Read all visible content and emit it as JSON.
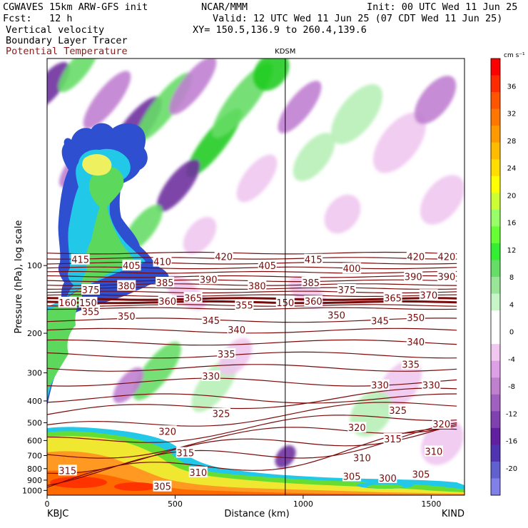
{
  "header": {
    "model": "CGWAVES 15km ARW-GFS init",
    "center": "NCAR/MMM",
    "init": "Init: 00 UTC Wed 11 Jun 25",
    "fcst": "Fcst:   12 h",
    "valid": "Valid: 12 UTC Wed 11 Jun 25 (07 CDT Wed 11 Jun 25)",
    "field1": "Vertical velocity",
    "field2": "Boundary Layer Tracer",
    "field3": "Potential Temperature",
    "xy": "XY= 150.5,136.9 to 260.4,139.6"
  },
  "colors": {
    "theta_line": "#7a0a0a",
    "theta_label": "#7a0a0a",
    "pos_light": "#b8f0b8",
    "pos_mid": "#66dd66",
    "pos_strong": "#22cc22",
    "neg_light": "#f0c8f0",
    "neg_mid": "#c080d0",
    "neg_strong": "#7030a0"
  },
  "chart_data": {
    "type": "heatmap",
    "title": "",
    "xlabel": "Distance (km)",
    "ylabel": "Pressure (hPa), log scale",
    "xlim": [
      0,
      1630
    ],
    "ylim": [
      1050,
      12
    ],
    "y_scale": "log",
    "x_ticks": [
      "0",
      "500",
      "1000",
      "1500"
    ],
    "x_tick_values": [
      0,
      500,
      1000,
      1500
    ],
    "y_ticks": [
      "100",
      "200",
      "300",
      "400",
      "500",
      "600",
      "700",
      "800",
      "900",
      "1000"
    ],
    "y_tick_values": [
      100,
      200,
      300,
      400,
      500,
      600,
      700,
      800,
      900,
      1000
    ],
    "left_station": "KBJC",
    "right_station": "KIND",
    "marker_station": "KDSM",
    "marker_x": 930,
    "colorbar": {
      "unit": "cm s⁻¹",
      "labels": [
        "36",
        "32",
        "28",
        "24",
        "20",
        "16",
        "12",
        "8",
        "4",
        "0",
        "-4",
        "-8",
        "-12",
        "-16",
        "-20"
      ],
      "values": [
        36,
        32,
        28,
        24,
        20,
        16,
        12,
        8,
        4,
        0,
        -4,
        -8,
        -12,
        -16,
        -20
      ],
      "colors": [
        "#ff0000",
        "#ff2a00",
        "#ff5500",
        "#ff7700",
        "#ff9900",
        "#ffbb00",
        "#ffdd00",
        "#ffff00",
        "#ccff33",
        "#99ff66",
        "#66ff33",
        "#33ee33",
        "#66dd66",
        "#99e699",
        "#c8f5c8",
        "#ffffff",
        "#ffffff",
        "#f0c8f0",
        "#dda0e6",
        "#c080d0",
        "#a060c0",
        "#7f40b0",
        "#6020a0",
        "#5033b0",
        "#6060d0",
        "#8080e8"
      ]
    },
    "theta_contours": [
      {
        "label": "415",
        "x": 130,
        "p": 94
      },
      {
        "label": "410",
        "x": 450,
        "p": 96
      },
      {
        "label": "405",
        "x": 330,
        "p": 100
      },
      {
        "label": "420",
        "x": 690,
        "p": 91
      },
      {
        "label": "405",
        "x": 860,
        "p": 100
      },
      {
        "label": "415",
        "x": 1040,
        "p": 94
      },
      {
        "label": "400",
        "x": 1190,
        "p": 103
      },
      {
        "label": "420",
        "x": 1440,
        "p": 91
      },
      {
        "label": "420",
        "x": 1560,
        "p": 91
      },
      {
        "label": "390",
        "x": 1430,
        "p": 112
      },
      {
        "label": "390",
        "x": 1560,
        "p": 112
      },
      {
        "label": "375",
        "x": 170,
        "p": 128
      },
      {
        "label": "380",
        "x": 310,
        "p": 123
      },
      {
        "label": "385",
        "x": 460,
        "p": 119
      },
      {
        "label": "390",
        "x": 630,
        "p": 115
      },
      {
        "label": "380",
        "x": 820,
        "p": 123
      },
      {
        "label": "385",
        "x": 1030,
        "p": 119
      },
      {
        "label": "375",
        "x": 1170,
        "p": 128
      },
      {
        "label": "365",
        "x": 1350,
        "p": 139
      },
      {
        "label": "370",
        "x": 1490,
        "p": 135
      },
      {
        "label": "360",
        "x": 470,
        "p": 144
      },
      {
        "label": "365",
        "x": 570,
        "p": 139
      },
      {
        "label": "355",
        "x": 770,
        "p": 150
      },
      {
        "label": "360",
        "x": 1040,
        "p": 144
      },
      {
        "label": "355",
        "x": 170,
        "p": 160
      },
      {
        "label": "350",
        "x": 310,
        "p": 168
      },
      {
        "label": "345",
        "x": 640,
        "p": 175
      },
      {
        "label": "350",
        "x": 1130,
        "p": 166
      },
      {
        "label": "345",
        "x": 1300,
        "p": 176
      },
      {
        "label": "350",
        "x": 1440,
        "p": 170
      },
      {
        "label": "340",
        "x": 740,
        "p": 193
      },
      {
        "label": "340",
        "x": 1440,
        "p": 218
      },
      {
        "label": "335",
        "x": 700,
        "p": 247
      },
      {
        "label": "335",
        "x": 1420,
        "p": 275
      },
      {
        "label": "330",
        "x": 640,
        "p": 310
      },
      {
        "label": "330",
        "x": 1300,
        "p": 340
      },
      {
        "label": "330",
        "x": 1500,
        "p": 340
      },
      {
        "label": "325",
        "x": 680,
        "p": 455
      },
      {
        "label": "325",
        "x": 1370,
        "p": 440
      },
      {
        "label": "320",
        "x": 470,
        "p": 545
      },
      {
        "label": "320",
        "x": 1210,
        "p": 525
      },
      {
        "label": "320",
        "x": 1540,
        "p": 505
      },
      {
        "label": "315",
        "x": 540,
        "p": 680
      },
      {
        "label": "315",
        "x": 1350,
        "p": 590
      },
      {
        "label": "310",
        "x": 1230,
        "p": 715
      },
      {
        "label": "310",
        "x": 1510,
        "p": 670
      },
      {
        "label": "315",
        "x": 80,
        "p": 815
      },
      {
        "label": "310",
        "x": 590,
        "p": 830
      },
      {
        "label": "305",
        "x": 1190,
        "p": 865
      },
      {
        "label": "300",
        "x": 1330,
        "p": 880
      },
      {
        "label": "305",
        "x": 1460,
        "p": 845
      },
      {
        "label": "305",
        "x": 450,
        "p": 960
      },
      {
        "label": "160",
        "x": 80,
        "p": 146
      },
      {
        "label": "150",
        "x": 160,
        "p": 146
      },
      {
        "label": "150",
        "x": 930,
        "p": 146
      }
    ]
  }
}
